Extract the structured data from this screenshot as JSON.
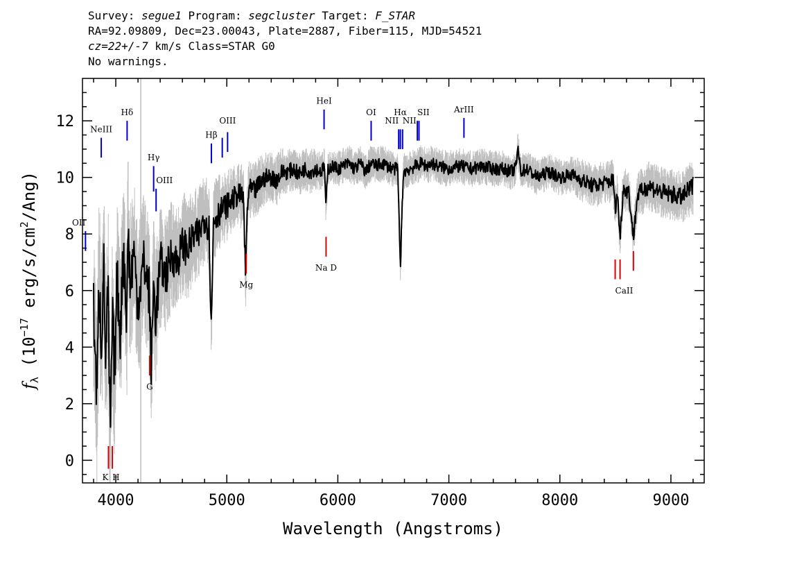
{
  "header": {
    "line1": {
      "survey_label": "Survey:",
      "survey": "segue1",
      "program_label": "Program:",
      "program": "segcluster",
      "target_label": "Target:",
      "target": "F_STAR"
    },
    "line2": "RA=92.09809, Dec=23.00043, Plate=2887, Fiber=115, MJD=54521",
    "line3": {
      "cz": "cz=22+/-7",
      "rest": " km/s Class=STAR G0"
    },
    "line4": "No warnings."
  },
  "chart_data": {
    "type": "line",
    "xlabel": "Wavelength (Angstroms)",
    "ylabel": "f_λ (10^-17 erg/s/cm^2/Ang)",
    "ylabel_parts": {
      "f": "f",
      "sub": "λ",
      "pre": " (10",
      "exp1": "−17",
      "mid": " erg/s/cm",
      "exp2": "2",
      "post": "/Ang)"
    },
    "xlim": [
      3700,
      9300
    ],
    "ylim": [
      -0.8,
      13.5
    ],
    "xticks": [
      4000,
      5000,
      6000,
      7000,
      8000,
      9000
    ],
    "yticks": [
      0,
      2,
      4,
      6,
      8,
      10,
      12
    ],
    "grid": false,
    "vertical_marker_x": 4225,
    "series": [
      {
        "role": "flux",
        "color": "#000000",
        "x": [
          3800,
          3830,
          3850,
          3870,
          3890,
          3910,
          3930,
          3950,
          3970,
          3990,
          4010,
          4040,
          4070,
          4100,
          4110,
          4130,
          4160,
          4200,
          4250,
          4300,
          4320,
          4340,
          4360,
          4400,
          4450,
          4500,
          4550,
          4600,
          4650,
          4700,
          4750,
          4800,
          4840,
          4861,
          4880,
          4920,
          4960,
          5000,
          5050,
          5100,
          5150,
          5170,
          5183,
          5200,
          5250,
          5300,
          5350,
          5400,
          5450,
          5500,
          5550,
          5600,
          5650,
          5700,
          5750,
          5800,
          5850,
          5880,
          5893,
          5910,
          5950,
          6000,
          6050,
          6100,
          6150,
          6200,
          6250,
          6300,
          6350,
          6400,
          6450,
          6500,
          6540,
          6563,
          6590,
          6650,
          6700,
          6750,
          6800,
          6850,
          6900,
          7000,
          7100,
          7200,
          7300,
          7400,
          7500,
          7550,
          7600,
          7620,
          7650,
          7700,
          7800,
          7900,
          8000,
          8100,
          8200,
          8300,
          8400,
          8480,
          8498,
          8520,
          8542,
          8570,
          8620,
          8662,
          8700,
          8800,
          8900,
          9000,
          9100,
          9200
        ],
        "y": [
          5.5,
          2.0,
          6.5,
          4.0,
          7.0,
          3.5,
          6.0,
          0.7,
          5.0,
          3.0,
          6.5,
          4.5,
          7.5,
          5.0,
          8.5,
          6.0,
          7.5,
          5.5,
          7.0,
          6.0,
          3.2,
          6.2,
          5.0,
          7.0,
          6.5,
          7.3,
          7.0,
          7.6,
          7.5,
          7.9,
          8.0,
          8.6,
          8.2,
          4.6,
          8.5,
          8.7,
          8.9,
          9.0,
          9.2,
          9.4,
          9.3,
          6.3,
          8.8,
          9.6,
          9.5,
          9.8,
          10.0,
          10.0,
          9.9,
          10.2,
          10.2,
          10.3,
          10.1,
          10.3,
          10.2,
          10.3,
          10.2,
          10.4,
          8.9,
          10.3,
          10.4,
          10.3,
          10.4,
          10.5,
          10.3,
          10.5,
          10.2,
          10.5,
          10.4,
          10.5,
          10.4,
          10.3,
          10.3,
          6.8,
          10.2,
          10.3,
          10.4,
          10.5,
          10.4,
          10.5,
          10.4,
          10.3,
          10.4,
          10.3,
          10.4,
          10.3,
          10.3,
          10.2,
          10.3,
          11.0,
          10.2,
          10.3,
          10.0,
          10.2,
          10.0,
          10.1,
          9.9,
          9.7,
          9.8,
          9.9,
          8.9,
          9.4,
          7.8,
          9.6,
          9.5,
          7.9,
          9.4,
          9.7,
          9.5,
          9.4,
          9.3,
          9.7
        ]
      },
      {
        "role": "error band",
        "color": "#bfbfbf",
        "amplitude": [
          2.5,
          2.5,
          2.5,
          2.5,
          2.5,
          2.5,
          2.5,
          2.5,
          2.5,
          2.5,
          2.2,
          2.2,
          2.2,
          2.2,
          2.2,
          2.2,
          2.0,
          2.0,
          2.0,
          2.0,
          2.0,
          2.0,
          1.8,
          1.8,
          1.6,
          1.6,
          1.5,
          1.5,
          1.4,
          1.3,
          1.3,
          1.2,
          1.2,
          1.2,
          1.1,
          1.1,
          1.0,
          1.0,
          0.9,
          0.9,
          0.9,
          0.9,
          0.9,
          0.8,
          0.8,
          0.8,
          0.7,
          0.7,
          0.7,
          0.7,
          0.6,
          0.6,
          0.6,
          0.6,
          0.6,
          0.6,
          0.5,
          0.5,
          0.5,
          0.5,
          0.5,
          0.5,
          0.5,
          0.5,
          0.5,
          0.5,
          0.5,
          0.5,
          0.5,
          0.5,
          0.5,
          0.5,
          0.5,
          0.5,
          0.5,
          0.5,
          0.5,
          0.5,
          0.5,
          0.5,
          0.5,
          0.5,
          0.5,
          0.5,
          0.5,
          0.5,
          0.5,
          0.5,
          0.5,
          0.5,
          0.5,
          0.5,
          0.5,
          0.5,
          0.5,
          0.5,
          0.6,
          0.6,
          0.6,
          0.6,
          0.6,
          0.6,
          0.6,
          0.6,
          0.6,
          0.6,
          0.6,
          0.7,
          0.7,
          0.7,
          0.7,
          0.8
        ]
      }
    ],
    "emission_lines": [
      {
        "label": "OII",
        "x": 3727,
        "y0": 7.4,
        "y1": 8.1,
        "label_y": 8.3,
        "anchor": "end"
      },
      {
        "label": "NeIII",
        "x": 3869,
        "y0": 10.7,
        "y1": 11.4,
        "label_y": 11.6,
        "anchor": "middle"
      },
      {
        "label": "Hδ",
        "x": 4102,
        "y0": 11.3,
        "y1": 12.0,
        "label_y": 12.2,
        "anchor": "middle"
      },
      {
        "label": "Hγ",
        "x": 4341,
        "y0": 9.5,
        "y1": 10.4,
        "label_y": 10.6,
        "anchor": "middle"
      },
      {
        "label": "OIII",
        "x": 4363,
        "y0": 8.8,
        "y1": 9.6,
        "label_y": 9.8,
        "anchor": "start"
      },
      {
        "label": "Hβ",
        "x": 4861,
        "y0": 10.5,
        "y1": 11.2,
        "label_y": 11.4,
        "anchor": "middle"
      },
      {
        "label": "",
        "x": 4959,
        "y0": 10.7,
        "y1": 11.4,
        "label_y": 11.6,
        "anchor": "middle"
      },
      {
        "label": "OIII",
        "x": 5007,
        "y0": 10.9,
        "y1": 11.6,
        "label_y": 11.9,
        "anchor": "middle"
      },
      {
        "label": "HeI",
        "x": 5876,
        "y0": 11.7,
        "y1": 12.4,
        "label_y": 12.6,
        "anchor": "middle"
      },
      {
        "label": "OI",
        "x": 6300,
        "y0": 11.3,
        "y1": 12.0,
        "label_y": 12.2,
        "anchor": "middle"
      },
      {
        "label": "NII",
        "x": 6548,
        "y0": 11.0,
        "y1": 11.7,
        "label_y": 11.9,
        "anchor": "end"
      },
      {
        "label": "Hα",
        "x": 6563,
        "y0": 11.0,
        "y1": 11.7,
        "label_y": 12.2,
        "anchor": "middle"
      },
      {
        "label": "NII",
        "x": 6583,
        "y0": 11.0,
        "y1": 11.7,
        "label_y": 11.9,
        "anchor": "start"
      },
      {
        "label": "SII",
        "x": 6716,
        "y0": 11.3,
        "y1": 12.0,
        "label_y": 12.2,
        "anchor": "start"
      },
      {
        "label": "",
        "x": 6731,
        "y0": 11.3,
        "y1": 12.0,
        "label_y": 12.2,
        "anchor": "start"
      },
      {
        "label": "ArIII",
        "x": 7136,
        "y0": 11.4,
        "y1": 12.1,
        "label_y": 12.3,
        "anchor": "middle"
      }
    ],
    "absorption_lines": [
      {
        "label": "K",
        "x": 3934,
        "y0": -0.3,
        "y1": 0.5,
        "label_y": -0.7,
        "anchor": "end"
      },
      {
        "label": "H",
        "x": 3969,
        "y0": -0.3,
        "y1": 0.5,
        "label_y": -0.7,
        "anchor": "start"
      },
      {
        "label": "G",
        "x": 4305,
        "y0": 3.0,
        "y1": 3.7,
        "label_y": 2.5,
        "anchor": "middle"
      },
      {
        "label": "Mg",
        "x": 5175,
        "y0": 6.6,
        "y1": 7.3,
        "label_y": 6.1,
        "anchor": "middle"
      },
      {
        "label": "Na D",
        "x": 5894,
        "y0": 7.2,
        "y1": 7.9,
        "label_y": 6.7,
        "anchor": "middle"
      },
      {
        "label": "CaII",
        "x": 8498,
        "y0": 6.4,
        "y1": 7.1,
        "label_y": 5.9,
        "anchor": "start"
      },
      {
        "label": "",
        "x": 8542,
        "y0": 6.4,
        "y1": 7.1,
        "label_y": 5.9,
        "anchor": "middle"
      },
      {
        "label": "",
        "x": 8662,
        "y0": 6.7,
        "y1": 7.4,
        "label_y": 6.2,
        "anchor": "middle"
      }
    ],
    "colors": {
      "emission": "#0000cc",
      "absorption": "#dd0000",
      "marker": "#bbbbbb"
    }
  }
}
